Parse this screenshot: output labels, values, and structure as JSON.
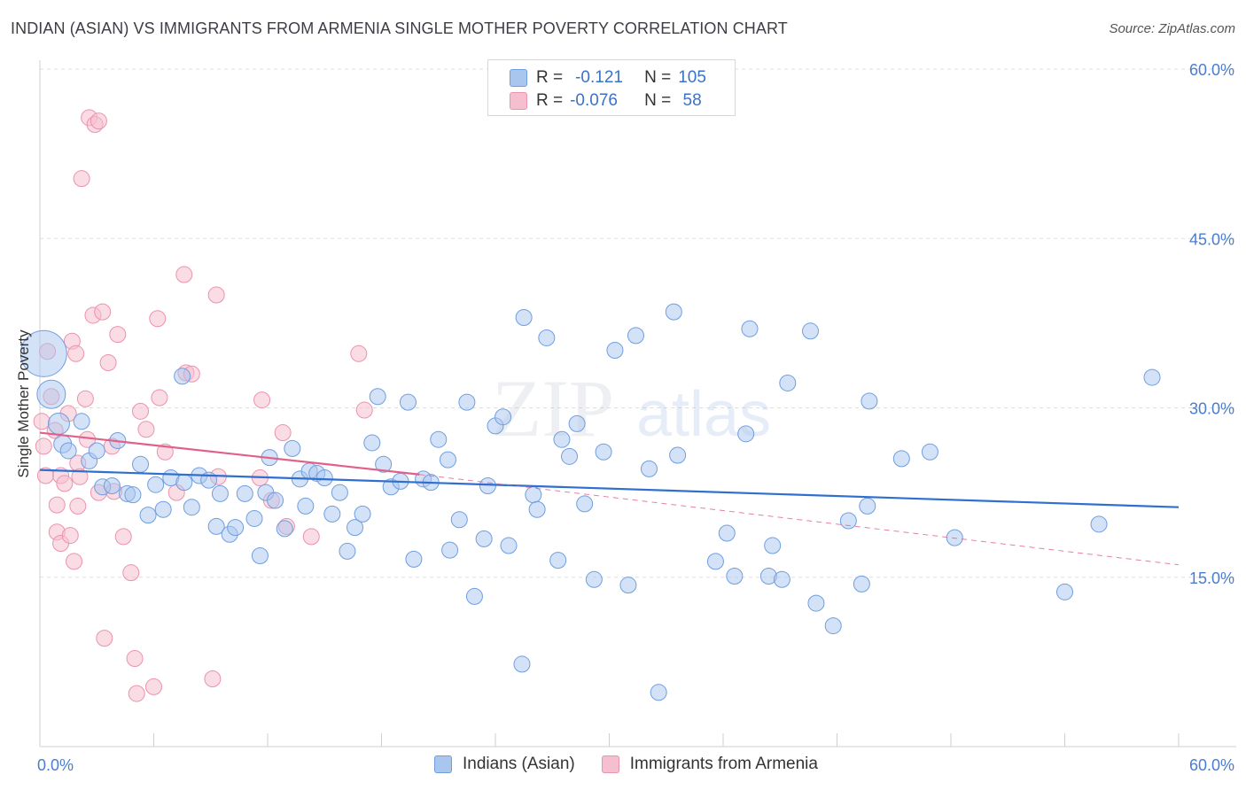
{
  "header": {
    "title": "INDIAN (ASIAN) VS IMMIGRANTS FROM ARMENIA SINGLE MOTHER POVERTY CORRELATION CHART",
    "source": "Source: ZipAtlas.com"
  },
  "legend": {
    "r_label": "R =",
    "n_label": "N =",
    "series": [
      {
        "r": "-0.121",
        "n": "105"
      },
      {
        "r": "-0.076",
        "n": " 58"
      }
    ]
  },
  "watermark": {
    "zip": "ZIP",
    "atlas": "atlas"
  },
  "colors": {
    "blue_fill": "#a9c6ef",
    "blue_stroke": "#6f9ee0",
    "blue_line": "#2f6fd0",
    "pink_fill": "#f6bfd0",
    "pink_stroke": "#ec92ad",
    "pink_line": "#e0608a",
    "tick_text": "#4a7cd0"
  },
  "chart_data": {
    "type": "scatter",
    "title": "INDIAN (ASIAN) VS IMMIGRANTS FROM ARMENIA SINGLE MOTHER POVERTY CORRELATION CHART",
    "xlabel": "",
    "ylabel": "Single Mother Poverty",
    "xlim": [
      0,
      60
    ],
    "ylim": [
      0,
      60
    ],
    "x_tick_labels": [
      "0.0%",
      "60.0%"
    ],
    "y_ticks": [
      15,
      30,
      45,
      60
    ],
    "y_tick_labels": [
      "15.0%",
      "30.0%",
      "45.0%",
      "60.0%"
    ],
    "grid": "horizontal dashed",
    "legend_position": "top-center",
    "series": [
      {
        "name": "Indians (Asian)",
        "r": -0.121,
        "n": 105,
        "trend": {
          "x": [
            0,
            60
          ],
          "y": [
            24.5,
            21.2
          ]
        },
        "points": [
          [
            0.2,
            34.8,
            26
          ],
          [
            0.6,
            31.2,
            16
          ],
          [
            1.0,
            28.6,
            12
          ],
          [
            1.2,
            26.8,
            10
          ],
          [
            1.5,
            26.2,
            9
          ],
          [
            2.2,
            28.8,
            9
          ],
          [
            2.6,
            25.3,
            9
          ],
          [
            3.0,
            26.2,
            9
          ],
          [
            3.3,
            23.0,
            9
          ],
          [
            3.8,
            23.1,
            9
          ],
          [
            4.1,
            27.1,
            9
          ],
          [
            4.6,
            22.4,
            9
          ],
          [
            4.9,
            22.3,
            9
          ],
          [
            5.3,
            25.0,
            9
          ],
          [
            5.7,
            20.5,
            9
          ],
          [
            6.1,
            23.2,
            9
          ],
          [
            6.5,
            21.0,
            9
          ],
          [
            6.9,
            23.8,
            9
          ],
          [
            7.5,
            32.8,
            9
          ],
          [
            7.6,
            23.4,
            9
          ],
          [
            8.0,
            21.2,
            9
          ],
          [
            8.4,
            24.0,
            9
          ],
          [
            8.9,
            23.6,
            9
          ],
          [
            9.3,
            19.5,
            9
          ],
          [
            9.5,
            22.4,
            9
          ],
          [
            10.0,
            18.8,
            9
          ],
          [
            10.3,
            19.4,
            9
          ],
          [
            10.8,
            22.4,
            9
          ],
          [
            11.3,
            20.2,
            9
          ],
          [
            11.6,
            16.9,
            9
          ],
          [
            11.9,
            22.5,
            9
          ],
          [
            12.1,
            25.6,
            9
          ],
          [
            12.4,
            21.8,
            9
          ],
          [
            12.9,
            19.3,
            9
          ],
          [
            13.3,
            26.4,
            9
          ],
          [
            13.7,
            23.7,
            9
          ],
          [
            14.0,
            21.3,
            9
          ],
          [
            14.2,
            24.4,
            9
          ],
          [
            14.6,
            24.2,
            9
          ],
          [
            15.0,
            23.8,
            9
          ],
          [
            15.4,
            20.6,
            9
          ],
          [
            15.8,
            22.5,
            9
          ],
          [
            16.2,
            17.3,
            9
          ],
          [
            16.6,
            19.4,
            9
          ],
          [
            17.0,
            20.6,
            9
          ],
          [
            17.5,
            26.9,
            9
          ],
          [
            17.8,
            31.0,
            9
          ],
          [
            18.1,
            25.0,
            9
          ],
          [
            18.5,
            23.0,
            9
          ],
          [
            19.0,
            23.5,
            9
          ],
          [
            19.4,
            30.5,
            9
          ],
          [
            19.7,
            16.6,
            9
          ],
          [
            20.2,
            23.7,
            9
          ],
          [
            20.6,
            23.4,
            9
          ],
          [
            21.0,
            27.2,
            9
          ],
          [
            21.5,
            25.4,
            9
          ],
          [
            21.6,
            17.4,
            9
          ],
          [
            22.1,
            20.1,
            9
          ],
          [
            22.5,
            30.5,
            9
          ],
          [
            22.9,
            13.3,
            9
          ],
          [
            23.4,
            18.4,
            9
          ],
          [
            23.6,
            23.1,
            9
          ],
          [
            24.0,
            28.4,
            9
          ],
          [
            24.4,
            29.2,
            9
          ],
          [
            24.7,
            17.8,
            9
          ],
          [
            25.4,
            7.3,
            9
          ],
          [
            25.5,
            38.0,
            9
          ],
          [
            26.0,
            22.3,
            9
          ],
          [
            26.2,
            21.0,
            9
          ],
          [
            26.7,
            36.2,
            9
          ],
          [
            27.3,
            16.5,
            9
          ],
          [
            27.5,
            27.2,
            9
          ],
          [
            27.9,
            25.7,
            9
          ],
          [
            28.3,
            28.6,
            9
          ],
          [
            28.7,
            21.5,
            9
          ],
          [
            29.2,
            14.8,
            9
          ],
          [
            29.7,
            26.1,
            9
          ],
          [
            30.3,
            35.1,
            9
          ],
          [
            31.0,
            14.3,
            9
          ],
          [
            31.4,
            36.4,
            9
          ],
          [
            32.1,
            24.6,
            9
          ],
          [
            32.6,
            4.8,
            9
          ],
          [
            33.4,
            38.5,
            9
          ],
          [
            33.6,
            25.8,
            9
          ],
          [
            35.6,
            16.4,
            9
          ],
          [
            36.2,
            18.9,
            9
          ],
          [
            36.6,
            15.1,
            9
          ],
          [
            37.2,
            27.7,
            9
          ],
          [
            37.4,
            37.0,
            9
          ],
          [
            38.4,
            15.1,
            9
          ],
          [
            38.6,
            17.8,
            9
          ],
          [
            39.1,
            14.8,
            9
          ],
          [
            39.4,
            32.2,
            9
          ],
          [
            40.6,
            36.8,
            9
          ],
          [
            40.9,
            12.7,
            9
          ],
          [
            41.8,
            10.7,
            9
          ],
          [
            42.6,
            20.0,
            9
          ],
          [
            43.3,
            14.4,
            9
          ],
          [
            43.6,
            21.3,
            9
          ],
          [
            43.7,
            30.6,
            9
          ],
          [
            45.4,
            25.5,
            9
          ],
          [
            46.9,
            26.1,
            9
          ],
          [
            48.2,
            18.5,
            9
          ],
          [
            54.0,
            13.7,
            9
          ],
          [
            55.8,
            19.7,
            9
          ],
          [
            58.6,
            32.7,
            9
          ]
        ]
      },
      {
        "name": "Immigrants from Armenia",
        "r": -0.076,
        "n": 58,
        "trend": {
          "x": [
            0,
            20
          ],
          "y": [
            27.8,
            24.1
          ]
        },
        "trend_extension": {
          "x": [
            20,
            60
          ],
          "y": [
            24.1,
            16.1
          ]
        },
        "points": [
          [
            0.1,
            28.8,
            9
          ],
          [
            0.2,
            26.6,
            9
          ],
          [
            0.3,
            24.0,
            9
          ],
          [
            0.4,
            35.0,
            9
          ],
          [
            0.6,
            31.0,
            9
          ],
          [
            0.8,
            28.0,
            9
          ],
          [
            0.9,
            21.4,
            9
          ],
          [
            0.9,
            19.0,
            9
          ],
          [
            1.1,
            18.0,
            9
          ],
          [
            1.1,
            24.0,
            9
          ],
          [
            1.3,
            23.3,
            9
          ],
          [
            1.5,
            29.5,
            9
          ],
          [
            1.6,
            18.7,
            9
          ],
          [
            1.7,
            35.9,
            9
          ],
          [
            1.8,
            16.4,
            9
          ],
          [
            1.9,
            34.8,
            9
          ],
          [
            2.0,
            21.3,
            9
          ],
          [
            2.0,
            25.1,
            9
          ],
          [
            2.1,
            23.9,
            9
          ],
          [
            2.2,
            50.3,
            9
          ],
          [
            2.4,
            30.8,
            9
          ],
          [
            2.5,
            27.2,
            9
          ],
          [
            2.6,
            55.7,
            9
          ],
          [
            2.8,
            38.2,
            9
          ],
          [
            2.9,
            55.1,
            9
          ],
          [
            3.1,
            55.4,
            9
          ],
          [
            3.1,
            22.5,
            9
          ],
          [
            3.3,
            38.5,
            9
          ],
          [
            3.4,
            9.6,
            9
          ],
          [
            3.6,
            34.0,
            9
          ],
          [
            3.8,
            26.6,
            9
          ],
          [
            3.9,
            22.6,
            9
          ],
          [
            4.1,
            36.5,
            9
          ],
          [
            4.4,
            18.6,
            9
          ],
          [
            4.8,
            15.4,
            9
          ],
          [
            5.0,
            7.8,
            9
          ],
          [
            5.1,
            4.7,
            9
          ],
          [
            5.3,
            29.7,
            9
          ],
          [
            5.6,
            28.1,
            9
          ],
          [
            6.0,
            5.3,
            9
          ],
          [
            6.2,
            37.9,
            9
          ],
          [
            6.3,
            30.9,
            9
          ],
          [
            6.6,
            26.1,
            9
          ],
          [
            7.2,
            22.5,
            9
          ],
          [
            7.6,
            41.8,
            9
          ],
          [
            7.7,
            33.1,
            9
          ],
          [
            8.0,
            33.0,
            9
          ],
          [
            9.1,
            6.0,
            9
          ],
          [
            9.3,
            40.0,
            9
          ],
          [
            9.4,
            23.9,
            9
          ],
          [
            11.6,
            23.8,
            9
          ],
          [
            11.7,
            30.7,
            9
          ],
          [
            12.2,
            21.8,
            9
          ],
          [
            12.8,
            27.8,
            9
          ],
          [
            13.0,
            19.5,
            9
          ],
          [
            14.3,
            18.6,
            9
          ],
          [
            16.8,
            34.8,
            9
          ],
          [
            17.1,
            29.8,
            9
          ]
        ]
      }
    ]
  },
  "bottom_legend": [
    {
      "label": "Indians (Asian)"
    },
    {
      "label": "Immigrants from Armenia"
    }
  ]
}
